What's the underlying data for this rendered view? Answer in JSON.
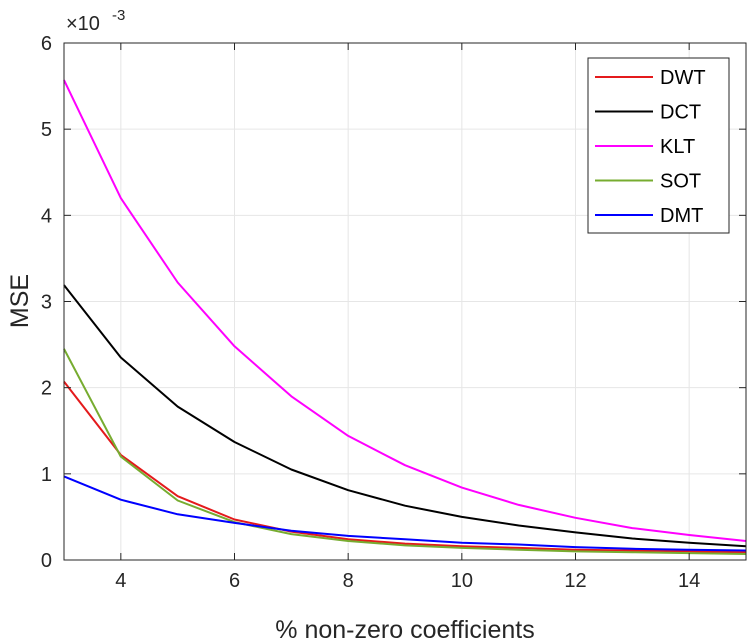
{
  "chart_data": {
    "type": "line",
    "xlabel": "% non-zero coefficients",
    "ylabel": "MSE",
    "y_exponent": {
      "prefix": "×10",
      "power": "-3"
    },
    "xlim": [
      3,
      15
    ],
    "ylim": [
      0,
      6
    ],
    "x_ticks": [
      4,
      6,
      8,
      10,
      12,
      14
    ],
    "x_tick_labels": [
      "4",
      "6",
      "8",
      "10",
      "12",
      "14"
    ],
    "y_ticks": [
      0,
      1,
      2,
      3,
      4,
      5,
      6
    ],
    "y_tick_labels": [
      "0",
      "1",
      "2",
      "3",
      "4",
      "5",
      "6"
    ],
    "grid": true,
    "legend_position": "top-right",
    "x": [
      3,
      4,
      5,
      6,
      7,
      8,
      9,
      10,
      11,
      12,
      13,
      14,
      15
    ],
    "series": [
      {
        "name": "DWT",
        "color": "#e41a1c",
        "values": [
          2.07,
          1.22,
          0.74,
          0.47,
          0.33,
          0.24,
          0.19,
          0.16,
          0.14,
          0.12,
          0.11,
          0.1,
          0.09
        ]
      },
      {
        "name": "DCT",
        "color": "#000000",
        "values": [
          3.19,
          2.35,
          1.78,
          1.37,
          1.05,
          0.81,
          0.63,
          0.5,
          0.4,
          0.32,
          0.25,
          0.2,
          0.16
        ]
      },
      {
        "name": "KLT",
        "color": "#ff00ff",
        "values": [
          5.57,
          4.2,
          3.22,
          2.48,
          1.9,
          1.44,
          1.1,
          0.84,
          0.64,
          0.49,
          0.37,
          0.29,
          0.22
        ]
      },
      {
        "name": "SOT",
        "color": "#77ac30",
        "values": [
          2.45,
          1.2,
          0.69,
          0.44,
          0.3,
          0.22,
          0.17,
          0.14,
          0.12,
          0.1,
          0.09,
          0.08,
          0.07
        ]
      },
      {
        "name": "DMT",
        "color": "#0000ff",
        "values": [
          0.97,
          0.7,
          0.53,
          0.43,
          0.34,
          0.28,
          0.24,
          0.2,
          0.18,
          0.15,
          0.13,
          0.12,
          0.11
        ]
      }
    ]
  }
}
